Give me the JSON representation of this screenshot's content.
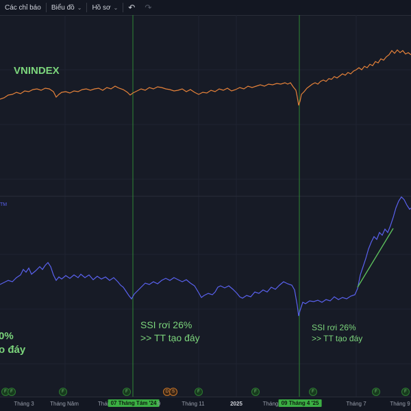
{
  "toolbar": {
    "indicators_label": "Các chỉ báo",
    "chart_label": "Biểu đồ",
    "profile_label": "Hồ sơ",
    "undo_icon": "undo-icon",
    "redo_icon": "redo-icon"
  },
  "panes": {
    "top_title": "VNINDEX",
    "bottom_tag": "TM"
  },
  "annotations": {
    "left_line1": "0%",
    "left_line2": "o đáy",
    "mid_line1": "SSI rơi 26%",
    "mid_line2": ">> TT tạo đáy",
    "right_line1": "SSI rơi 26%",
    "right_line2": ">> TT tạo đáy"
  },
  "x_axis": {
    "ticks": [
      "Tháng 3",
      "Tháng Năm",
      "Thán",
      "Tháng 11",
      "2025",
      "Tháng",
      "Tháng 7",
      "Tháng 9"
    ],
    "highlight_1": "07 Tháng Tám '24",
    "highlight_2": "09 Tháng 4 '25",
    "extra_tick": "9"
  },
  "event_markers": [
    "F",
    "F",
    "F",
    "F",
    "D",
    "S",
    "F",
    "F",
    "F",
    "F",
    "F"
  ],
  "colors": {
    "background": "#171b26",
    "vnindex_line": "#e8833a",
    "ssi_line": "#5a62f0",
    "vertical_marker": "#2f8a34",
    "annotation_text": "#7cd67c",
    "trend_line": "#5cbf5c"
  },
  "chart_data": [
    {
      "type": "line",
      "title": "VNINDEX",
      "series": [
        {
          "name": "VNINDEX",
          "y_start_level": 1150,
          "y_end_level": 1700
        }
      ]
    },
    {
      "type": "line",
      "series": [
        {
          "name": "SSI"
        }
      ]
    }
  ]
}
